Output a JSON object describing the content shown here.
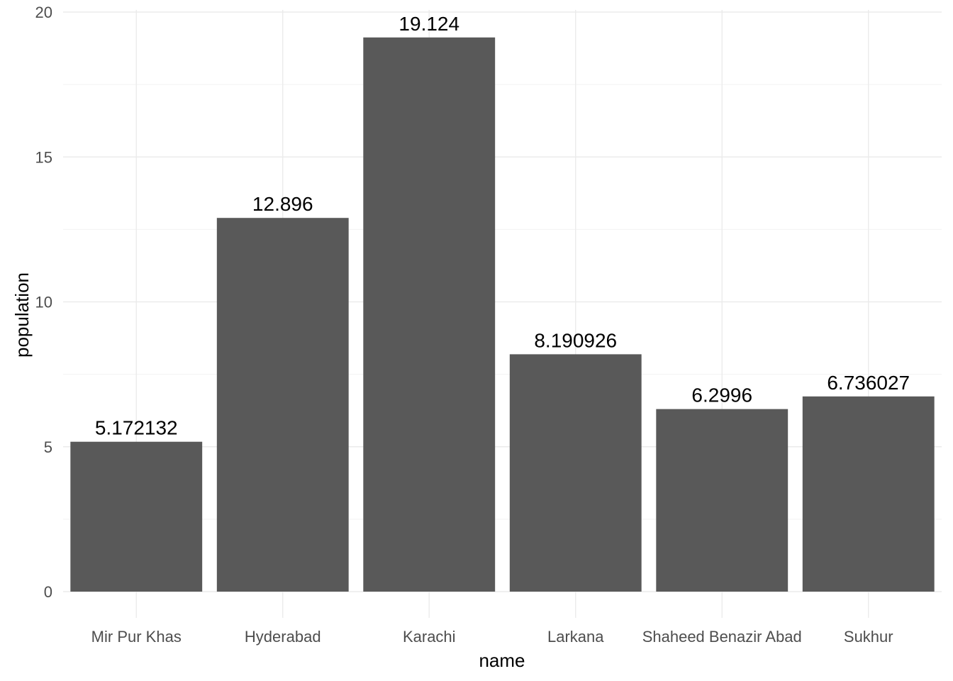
{
  "chart_data": {
    "type": "bar",
    "categories": [
      "Mir Pur Khas",
      "Hyderabad",
      "Karachi",
      "Larkana",
      "Shaheed Benazir Abad",
      "Sukhur"
    ],
    "values": [
      5.172132,
      12.896,
      19.124,
      8.190926,
      6.2996,
      6.736027
    ],
    "data_labels": [
      "5.172132",
      "12.896",
      "19.124",
      "8.190926",
      "6.2996",
      "6.736027"
    ],
    "xlabel": "name",
    "ylabel": "population",
    "ylim": [
      0,
      20
    ],
    "yticks": [
      0,
      5,
      10,
      15,
      20
    ],
    "ytick_labels": [
      "0",
      "5",
      "10",
      "15",
      "20"
    ],
    "grid": true,
    "legend": "none",
    "bar_color": "#595959"
  }
}
